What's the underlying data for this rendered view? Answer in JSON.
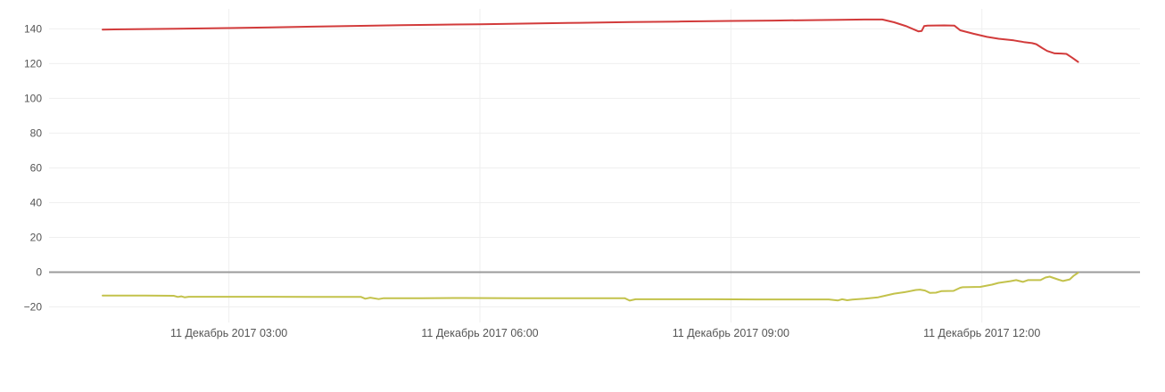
{
  "chart_data": {
    "type": "line",
    "title": "",
    "xlabel": "",
    "ylabel": "",
    "x_unit": "hours since 2017-12-11 00:00",
    "xlim": [
      0.85,
      13.89
    ],
    "ylim": [
      -29,
      151.5
    ],
    "grid": true,
    "legend_position": "none",
    "background_color": "#ffffff",
    "grid_color": "#efefef",
    "zero_line_color": "#9b9b9b",
    "tick_label_color": "#555555",
    "y_ticks": [
      -20,
      0,
      20,
      40,
      60,
      80,
      100,
      120,
      140
    ],
    "x_ticks": [
      {
        "value": 3,
        "label": "11 Декабрь 2017 03:00"
      },
      {
        "value": 6,
        "label": "11 Декабрь 2017 06:00"
      },
      {
        "value": 9,
        "label": "11 Декабрь 2017 09:00"
      },
      {
        "value": 12,
        "label": "11 Декабрь 2017 12:00"
      }
    ],
    "series": [
      {
        "name": "upper-red-line",
        "color": "#d23b3b",
        "points": [
          [
            1.49,
            139.6
          ],
          [
            2.0,
            139.9
          ],
          [
            2.39,
            140.1
          ],
          [
            3.0,
            140.5
          ],
          [
            3.5,
            140.9
          ],
          [
            4.0,
            141.3
          ],
          [
            4.5,
            141.7
          ],
          [
            5.06,
            142.1
          ],
          [
            5.5,
            142.4
          ],
          [
            6.0,
            142.7
          ],
          [
            6.6,
            143.1
          ],
          [
            7.19,
            143.5
          ],
          [
            7.8,
            143.9
          ],
          [
            8.37,
            144.2
          ],
          [
            9.0,
            144.6
          ],
          [
            9.5,
            144.8
          ],
          [
            9.85,
            145.0
          ],
          [
            10.3,
            145.2
          ],
          [
            10.6,
            145.4
          ],
          [
            10.81,
            145.4
          ],
          [
            10.95,
            143.8
          ],
          [
            11.1,
            141.5
          ],
          [
            11.24,
            138.6
          ],
          [
            11.28,
            138.8
          ],
          [
            11.31,
            141.6
          ],
          [
            11.35,
            141.9
          ],
          [
            11.55,
            142.0
          ],
          [
            11.67,
            141.9
          ],
          [
            11.74,
            139.2
          ],
          [
            11.9,
            137.2
          ],
          [
            12.06,
            135.4
          ],
          [
            12.2,
            134.3
          ],
          [
            12.38,
            133.4
          ],
          [
            12.5,
            132.4
          ],
          [
            12.6,
            131.8
          ],
          [
            12.65,
            131.2
          ],
          [
            12.72,
            129.0
          ],
          [
            12.78,
            127.3
          ],
          [
            12.87,
            125.9
          ],
          [
            12.95,
            125.8
          ],
          [
            13.01,
            125.6
          ],
          [
            13.08,
            123.4
          ],
          [
            13.15,
            121.0
          ]
        ]
      },
      {
        "name": "lower-olive-line",
        "color": "#c3c24b",
        "points": [
          [
            1.49,
            -13.5
          ],
          [
            2.0,
            -13.5
          ],
          [
            2.34,
            -13.6
          ],
          [
            2.39,
            -14.3
          ],
          [
            2.43,
            -13.9
          ],
          [
            2.47,
            -14.5
          ],
          [
            2.52,
            -14.2
          ],
          [
            3.0,
            -14.2
          ],
          [
            3.5,
            -14.2
          ],
          [
            4.0,
            -14.3
          ],
          [
            4.58,
            -14.3
          ],
          [
            4.63,
            -15.3
          ],
          [
            4.69,
            -14.7
          ],
          [
            4.79,
            -15.5
          ],
          [
            4.85,
            -15.0
          ],
          [
            5.3,
            -15.0
          ],
          [
            5.81,
            -14.9
          ],
          [
            6.5,
            -15.0
          ],
          [
            7.0,
            -15.0
          ],
          [
            7.73,
            -15.0
          ],
          [
            7.79,
            -16.4
          ],
          [
            7.86,
            -15.6
          ],
          [
            8.3,
            -15.6
          ],
          [
            8.79,
            -15.6
          ],
          [
            9.3,
            -15.7
          ],
          [
            10.17,
            -15.7
          ],
          [
            10.28,
            -16.3
          ],
          [
            10.33,
            -15.6
          ],
          [
            10.39,
            -16.2
          ],
          [
            10.45,
            -15.8
          ],
          [
            10.6,
            -15.3
          ],
          [
            10.76,
            -14.5
          ],
          [
            10.81,
            -13.9
          ],
          [
            10.95,
            -12.4
          ],
          [
            11.08,
            -11.5
          ],
          [
            11.21,
            -10.3
          ],
          [
            11.26,
            -10.1
          ],
          [
            11.32,
            -10.6
          ],
          [
            11.38,
            -12.0
          ],
          [
            11.45,
            -11.8
          ],
          [
            11.52,
            -10.9
          ],
          [
            11.66,
            -10.8
          ],
          [
            11.74,
            -9.0
          ],
          [
            11.77,
            -8.7
          ],
          [
            11.98,
            -8.5
          ],
          [
            12.12,
            -7.2
          ],
          [
            12.2,
            -6.2
          ],
          [
            12.34,
            -5.2
          ],
          [
            12.41,
            -4.6
          ],
          [
            12.49,
            -5.6
          ],
          [
            12.55,
            -4.6
          ],
          [
            12.7,
            -4.6
          ],
          [
            12.76,
            -3.1
          ],
          [
            12.81,
            -2.6
          ],
          [
            12.92,
            -4.4
          ],
          [
            12.97,
            -5.1
          ],
          [
            13.05,
            -4.2
          ],
          [
            13.1,
            -2.0
          ],
          [
            13.15,
            -0.4
          ]
        ]
      }
    ]
  }
}
